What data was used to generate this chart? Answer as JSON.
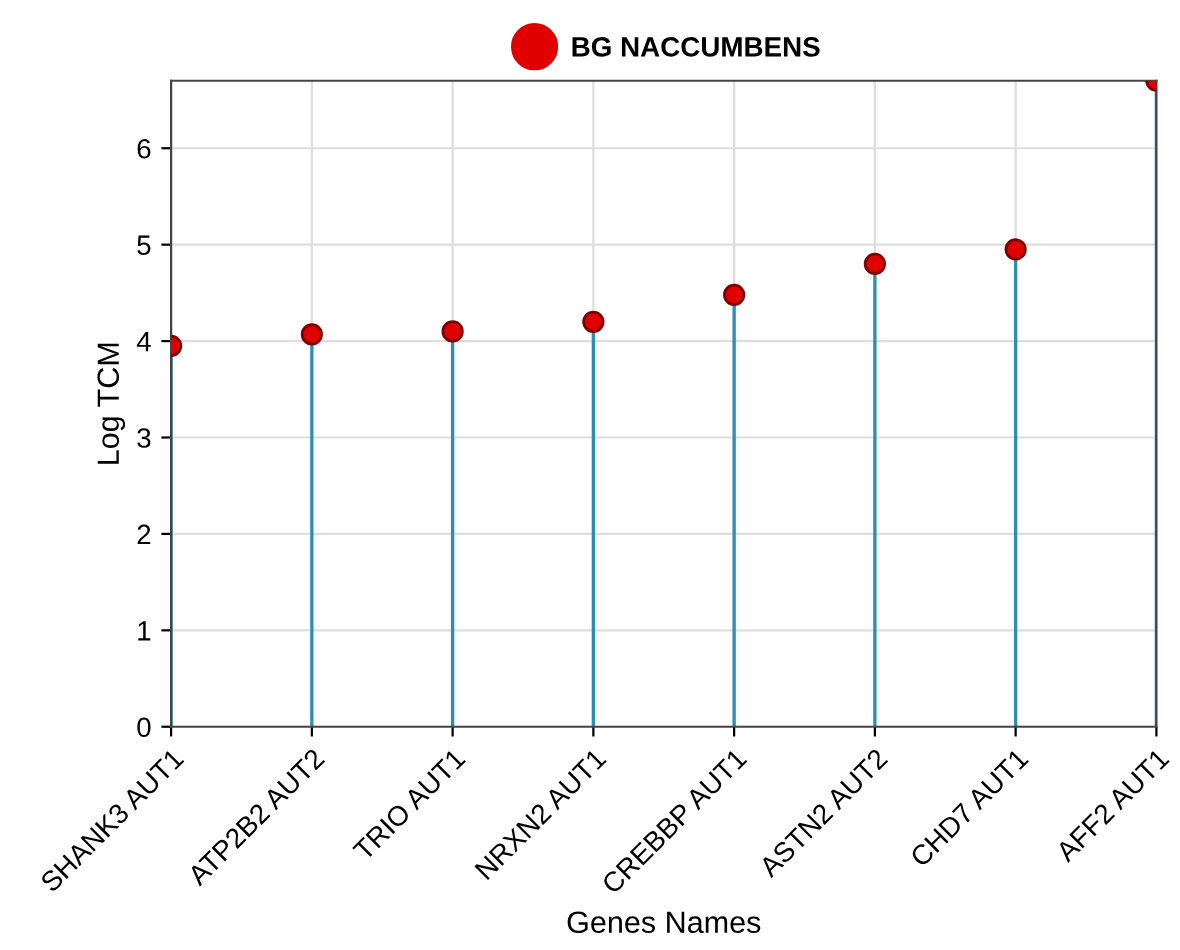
{
  "chart_data": {
    "type": "lollipop",
    "categories": [
      "SHANK3 AUT1",
      "ATP2B2 AUT2",
      "TRIO AUT1",
      "NRXN2 AUT1",
      "CREBBP AUT1",
      "ASTN2 AUT2",
      "CHD7 AUT1",
      "AFF2 AUT1"
    ],
    "series": [
      {
        "name": "BG NACCUMBENS",
        "color": "#e00000",
        "values": [
          3.95,
          4.07,
          4.1,
          4.2,
          4.48,
          4.8,
          4.95,
          6.7
        ]
      }
    ],
    "xlabel": "Genes Names",
    "ylabel": "Log TCM",
    "ylim": [
      0,
      6.7
    ],
    "yticks": [
      0,
      1,
      2,
      3,
      4,
      5,
      6
    ],
    "grid": true,
    "legend": "top",
    "marker": "circle"
  }
}
